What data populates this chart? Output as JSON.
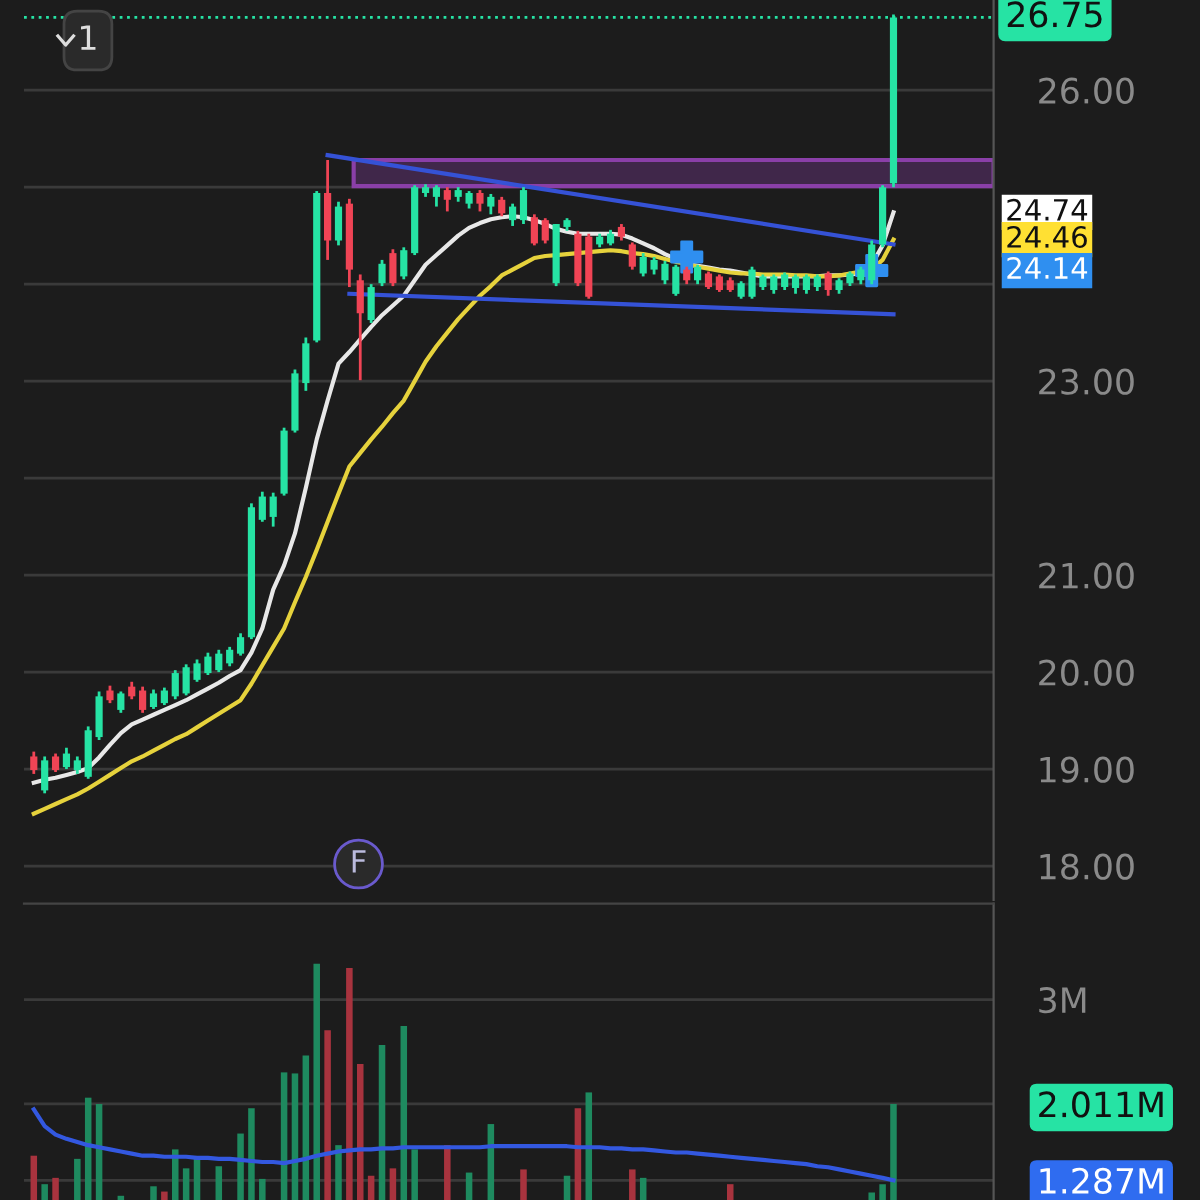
{
  "chart_data": [
    {
      "type": "candlestick",
      "categories": [
        null,
        null,
        null,
        null,
        null,
        null,
        null,
        null,
        null,
        null,
        null,
        null,
        null,
        null,
        null,
        null,
        null,
        null,
        null,
        null,
        null,
        null,
        null,
        null,
        null,
        null,
        null,
        null,
        null,
        null,
        null,
        null,
        null,
        null,
        null,
        null,
        null,
        null,
        null,
        null,
        null,
        null,
        null,
        null,
        null,
        null,
        null,
        null,
        null,
        null,
        null,
        null,
        null,
        null,
        null,
        null,
        null,
        null,
        null,
        null,
        null,
        null,
        null,
        null,
        null,
        null,
        null,
        null,
        null,
        null,
        null,
        null,
        null,
        null,
        null,
        null,
        null,
        null,
        null,
        null
      ],
      "ohlc": [
        [
          19.13,
          19.18,
          18.95,
          18.99
        ],
        [
          18.78,
          19.13,
          18.75,
          19.09
        ],
        [
          19.13,
          19.16,
          18.97,
          18.99
        ],
        [
          19.02,
          19.22,
          19.0,
          19.16
        ],
        [
          18.99,
          19.13,
          18.95,
          19.09
        ],
        [
          18.92,
          19.44,
          18.9,
          19.4
        ],
        [
          19.33,
          19.8,
          19.3,
          19.75
        ],
        [
          19.81,
          19.86,
          19.68,
          19.71
        ],
        [
          19.61,
          19.8,
          19.58,
          19.78
        ],
        [
          19.85,
          19.9,
          19.72,
          19.75
        ],
        [
          19.81,
          19.85,
          19.58,
          19.61
        ],
        [
          19.64,
          19.82,
          19.62,
          19.78
        ],
        [
          19.68,
          19.84,
          19.66,
          19.81
        ],
        [
          19.75,
          20.02,
          19.72,
          19.99
        ],
        [
          19.78,
          20.08,
          19.76,
          20.05
        ],
        [
          19.92,
          20.13,
          19.9,
          20.09
        ],
        [
          19.99,
          20.2,
          19.97,
          20.16
        ],
        [
          20.02,
          20.23,
          20.0,
          20.19
        ],
        [
          20.09,
          20.26,
          20.06,
          20.23
        ],
        [
          20.19,
          20.4,
          20.17,
          20.36
        ],
        [
          20.36,
          21.74,
          20.34,
          21.7
        ],
        [
          21.57,
          21.86,
          21.55,
          21.81
        ],
        [
          21.6,
          21.85,
          21.5,
          21.81
        ],
        [
          21.84,
          22.52,
          21.82,
          22.49
        ],
        [
          22.49,
          23.12,
          22.47,
          23.08
        ],
        [
          22.98,
          23.45,
          22.9,
          23.39
        ],
        [
          23.42,
          24.96,
          23.4,
          24.94
        ],
        [
          24.94,
          25.28,
          24.25,
          24.45
        ],
        [
          24.45,
          24.85,
          24.4,
          24.8
        ],
        [
          24.83,
          24.88,
          23.97,
          24.15
        ],
        [
          24.04,
          24.1,
          23.01,
          23.7
        ],
        [
          23.63,
          24.0,
          23.6,
          23.97
        ],
        [
          24.01,
          24.25,
          23.98,
          24.21
        ],
        [
          24.32,
          24.36,
          23.98,
          24.01
        ],
        [
          24.08,
          24.38,
          24.05,
          24.35
        ],
        [
          24.32,
          25.02,
          24.3,
          25.0
        ],
        [
          24.94,
          25.03,
          24.9,
          25.0
        ],
        [
          24.9,
          25.02,
          24.8,
          25.0
        ],
        [
          24.97,
          25.0,
          24.75,
          24.87
        ],
        [
          24.9,
          25.0,
          24.85,
          24.97
        ],
        [
          24.83,
          24.96,
          24.78,
          24.94
        ],
        [
          24.94,
          24.97,
          24.75,
          24.83
        ],
        [
          24.8,
          24.93,
          24.72,
          24.9
        ],
        [
          24.87,
          24.9,
          24.7,
          24.73
        ],
        [
          24.66,
          24.83,
          24.6,
          24.8
        ],
        [
          24.66,
          25.0,
          24.62,
          24.97
        ],
        [
          24.69,
          24.72,
          24.4,
          24.42
        ],
        [
          24.66,
          24.68,
          24.42,
          24.45
        ],
        [
          24.01,
          24.62,
          23.98,
          24.62
        ],
        [
          24.59,
          24.68,
          24.55,
          24.66
        ],
        [
          24.52,
          24.55,
          23.98,
          24.01
        ],
        [
          24.49,
          24.52,
          23.85,
          23.87
        ],
        [
          24.41,
          24.52,
          24.38,
          24.49
        ],
        [
          24.42,
          24.56,
          24.4,
          24.52
        ],
        [
          24.59,
          24.62,
          24.45,
          24.49
        ],
        [
          24.41,
          24.43,
          24.15,
          24.18
        ],
        [
          24.11,
          24.32,
          24.08,
          24.28
        ],
        [
          24.15,
          24.28,
          24.1,
          24.25
        ],
        [
          24.04,
          24.24,
          24.0,
          24.21
        ],
        [
          23.9,
          24.2,
          23.88,
          24.18
        ],
        [
          24.15,
          24.18,
          24.0,
          24.04
        ],
        [
          24.04,
          24.2,
          24.0,
          24.18
        ],
        [
          24.11,
          24.13,
          23.95,
          23.97
        ],
        [
          24.08,
          24.1,
          23.92,
          23.94
        ],
        [
          24.04,
          24.07,
          23.92,
          23.94
        ],
        [
          23.87,
          24.03,
          23.85,
          24.01
        ],
        [
          23.87,
          24.18,
          23.85,
          24.15
        ],
        [
          23.97,
          24.1,
          23.94,
          24.08
        ],
        [
          23.94,
          24.1,
          23.9,
          24.08
        ],
        [
          23.97,
          24.12,
          23.94,
          24.1
        ],
        [
          23.96,
          24.1,
          23.9,
          24.08
        ],
        [
          23.94,
          24.1,
          23.9,
          24.08
        ],
        [
          23.97,
          24.1,
          23.93,
          24.08
        ],
        [
          24.11,
          24.13,
          23.88,
          23.94
        ],
        [
          23.94,
          24.06,
          23.9,
          24.04
        ],
        [
          24.01,
          24.13,
          23.98,
          24.11
        ],
        [
          24.04,
          24.18,
          24.0,
          24.15
        ],
        [
          24.04,
          24.45,
          24.0,
          24.41
        ],
        [
          24.41,
          25.02,
          24.38,
          25.0
        ],
        [
          25.04,
          26.78,
          25.0,
          26.75
        ]
      ],
      "colors": [
        "#f04455",
        "#26e3a4",
        "#f04455",
        "#26e3a4",
        "#26e3a4",
        "#26e3a4",
        "#26e3a4",
        "#f04455",
        "#26e3a4",
        "#f04455",
        "#f04455",
        "#26e3a4",
        "#26e3a4",
        "#26e3a4",
        "#26e3a4",
        "#26e3a4",
        "#26e3a4",
        "#26e3a4",
        "#26e3a4",
        "#26e3a4",
        "#26e3a4",
        "#26e3a4",
        "#26e3a4",
        "#26e3a4",
        "#26e3a4",
        "#26e3a4",
        "#26e3a4",
        "#f04455",
        "#26e3a4",
        "#f04455",
        "#f04455",
        "#26e3a4",
        "#26e3a4",
        "#f04455",
        "#26e3a4",
        "#26e3a4",
        "#26e3a4",
        "#26e3a4",
        "#f04455",
        "#26e3a4",
        "#26e3a4",
        "#f04455",
        "#26e3a4",
        "#f04455",
        "#26e3a4",
        "#26e3a4",
        "#f04455",
        "#f04455",
        "#26e3a4",
        "#26e3a4",
        "#f04455",
        "#f04455",
        "#26e3a4",
        "#26e3a4",
        "#f04455",
        "#f04455",
        "#26e3a4",
        "#26e3a4",
        "#26e3a4",
        "#26e3a4",
        "#f04455",
        "#26e3a4",
        "#f04455",
        "#f04455",
        "#f04455",
        "#26e3a4",
        "#26e3a4",
        "#26e3a4",
        "#26e3a4",
        "#26e3a4",
        "#26e3a4",
        "#26e3a4",
        "#26e3a4",
        "#f04455",
        "#26e3a4",
        "#26e3a4",
        "#26e3a4",
        "#26e3a4",
        "#26e3a4",
        "#26e3a4"
      ],
      "series": [
        {
          "type": "line",
          "color": "#e8e8e8",
          "values": [
            18.86,
            18.89,
            18.91,
            18.94,
            18.97,
            19.01,
            19.12,
            19.25,
            19.37,
            19.46,
            19.51,
            19.56,
            19.61,
            19.66,
            19.71,
            19.77,
            19.83,
            19.89,
            19.96,
            20.02,
            20.2,
            20.45,
            20.85,
            21.1,
            21.43,
            21.9,
            22.4,
            22.8,
            23.18,
            23.3,
            23.43,
            23.56,
            23.68,
            23.78,
            23.88,
            24.04,
            24.2,
            24.3,
            24.4,
            24.5,
            24.58,
            24.63,
            24.67,
            24.69,
            24.7,
            24.69,
            24.66,
            24.62,
            24.57,
            24.54,
            24.52,
            24.52,
            24.52,
            24.52,
            24.51,
            24.47,
            24.42,
            24.37,
            24.31,
            24.26,
            24.21,
            24.19,
            24.17,
            24.15,
            24.14,
            24.12,
            24.1,
            24.08,
            24.08,
            24.08,
            24.08,
            24.08,
            24.08,
            24.09,
            24.09,
            24.1,
            24.11,
            24.2,
            24.4,
            24.74
          ]
        },
        {
          "type": "line",
          "color": "#e6d23c",
          "values": [
            18.54,
            18.59,
            18.64,
            18.69,
            18.74,
            18.8,
            18.87,
            18.94,
            19.01,
            19.08,
            19.13,
            19.19,
            19.25,
            19.31,
            19.36,
            19.43,
            19.5,
            19.57,
            19.64,
            19.71,
            19.88,
            20.07,
            20.26,
            20.45,
            20.72,
            20.98,
            21.26,
            21.55,
            21.84,
            22.12,
            22.26,
            22.4,
            22.53,
            22.67,
            22.8,
            23.0,
            23.2,
            23.36,
            23.5,
            23.64,
            23.76,
            23.88,
            23.98,
            24.09,
            24.15,
            24.21,
            24.27,
            24.29,
            24.3,
            24.31,
            24.32,
            24.33,
            24.34,
            24.35,
            24.34,
            24.32,
            24.31,
            24.29,
            24.26,
            24.23,
            24.21,
            24.18,
            24.16,
            24.14,
            24.12,
            24.11,
            24.11,
            24.1,
            24.1,
            24.1,
            24.09,
            24.09,
            24.08,
            24.08,
            24.09,
            24.11,
            24.13,
            24.15,
            24.25,
            24.46
          ]
        },
        {
          "type": "scatter",
          "color": "#2f8ff0",
          "marker": "cross",
          "values": [
            null,
            null,
            null,
            null,
            null,
            null,
            null,
            null,
            null,
            null,
            null,
            null,
            null,
            null,
            null,
            null,
            null,
            null,
            null,
            null,
            null,
            null,
            null,
            null,
            null,
            null,
            null,
            null,
            null,
            null,
            null,
            null,
            null,
            null,
            null,
            null,
            null,
            null,
            null,
            null,
            null,
            null,
            null,
            null,
            null,
            null,
            null,
            null,
            null,
            null,
            null,
            null,
            null,
            null,
            null,
            null,
            null,
            null,
            null,
            null,
            24.28,
            null,
            null,
            null,
            null,
            null,
            null,
            null,
            null,
            null,
            null,
            null,
            null,
            null,
            null,
            null,
            null,
            24.14,
            null,
            null
          ]
        },
        {
          "type": "line",
          "color": "#3552d6",
          "values": [
            null,
            null,
            null,
            null,
            null,
            null,
            null,
            null,
            null,
            null,
            null,
            null,
            null,
            null,
            null,
            null,
            null,
            null,
            null,
            null,
            null,
            null,
            null,
            null,
            null,
            null,
            null,
            25.33,
            null,
            null,
            null,
            null,
            null,
            null,
            null,
            null,
            null,
            null,
            null,
            null,
            null,
            null,
            null,
            null,
            null,
            null,
            null,
            null,
            null,
            null,
            null,
            null,
            null,
            null,
            null,
            null,
            null,
            null,
            null,
            null,
            null,
            null,
            null,
            null,
            null,
            null,
            null,
            null,
            null,
            null,
            null,
            null,
            null,
            null,
            null,
            null,
            null,
            null,
            null,
            24.41
          ]
        },
        {
          "type": "line",
          "color": "#3552d6",
          "values": [
            null,
            null,
            null,
            null,
            null,
            null,
            null,
            null,
            null,
            null,
            null,
            null,
            null,
            null,
            null,
            null,
            null,
            null,
            null,
            null,
            null,
            null,
            null,
            null,
            null,
            null,
            null,
            null,
            null,
            23.9,
            null,
            null,
            null,
            null,
            null,
            null,
            null,
            null,
            null,
            null,
            null,
            null,
            null,
            null,
            null,
            null,
            null,
            null,
            null,
            null,
            null,
            null,
            null,
            null,
            null,
            null,
            null,
            null,
            null,
            null,
            null,
            null,
            null,
            null,
            null,
            null,
            null,
            null,
            null,
            null,
            null,
            null,
            null,
            null,
            null,
            null,
            null,
            null,
            null,
            23.69
          ]
        }
      ],
      "ylim": [
        17.65,
        26.93
      ],
      "yticks": [
        {
          "value": 18,
          "label": "18.00"
        },
        {
          "value": 19,
          "label": "19.00"
        },
        {
          "value": 20,
          "label": "20.00"
        },
        {
          "value": 21,
          "label": "21.00"
        },
        {
          "value": 22,
          "label": null
        },
        {
          "value": 23,
          "label": "23.00"
        },
        {
          "value": 24,
          "label": null
        },
        {
          "value": 25,
          "label": null
        },
        {
          "value": 26,
          "label": "26.00"
        }
      ],
      "tick_labels": "y",
      "grid": "y",
      "ref_lines": [
        {
          "axis": "y",
          "value": 26.75,
          "label": "26.75",
          "color": "#26e3a4",
          "line_style": "dotted"
        }
      ],
      "bands": [
        {
          "axis": "y",
          "from": 25.01,
          "to": 25.28,
          "color": "#8a3fa8"
        }
      ],
      "annotations": [
        "1",
        "F",
        "24.74",
        "24.46",
        "24.14"
      ]
    },
    {
      "type": "bar",
      "categories": [
        null,
        null,
        null,
        null,
        null,
        null,
        null,
        null,
        null,
        null,
        null,
        null,
        null,
        null,
        null,
        null,
        null,
        null,
        null,
        null,
        null,
        null,
        null,
        null,
        null,
        null,
        null,
        null,
        null,
        null,
        null,
        null,
        null,
        null,
        null,
        null,
        null,
        null,
        null,
        null,
        null,
        null,
        null,
        null,
        null,
        null,
        null,
        null,
        null,
        null,
        null,
        null,
        null,
        null,
        null,
        null,
        null,
        null,
        null,
        null,
        null,
        null,
        null,
        null,
        null,
        null,
        null,
        null,
        null,
        null,
        null,
        null,
        null,
        null,
        null,
        null,
        null,
        null,
        null,
        null
      ],
      "series": [
        {
          "type": "bar",
          "values": [
            1.52,
            1.25,
            1.31,
            null,
            1.49,
            2.07,
            2.01,
            null,
            1.14,
            null,
            null,
            1.23,
            1.18,
            1.58,
            1.4,
            1.49,
            null,
            1.42,
            null,
            1.73,
            1.97,
            1.3,
            null,
            2.31,
            2.3,
            2.47,
            3.34,
            2.71,
            1.62,
            3.3,
            2.39,
            1.33,
            2.57,
            1.4,
            2.75,
            1.58,
            null,
            null,
            1.62,
            null,
            1.36,
            null,
            1.82,
            null,
            null,
            1.39,
            null,
            null,
            null,
            1.33,
            1.97,
            2.12,
            null,
            null,
            null,
            1.39,
            1.31,
            null,
            null,
            null,
            null,
            null,
            null,
            null,
            1.25,
            null,
            null,
            null,
            null,
            null,
            null,
            null,
            null,
            null,
            null,
            null,
            null,
            1.17,
            1.25,
            2.011
          ],
          "colors": [
            "#a8333e",
            "#1e8a5f",
            "#a8333e",
            null,
            "#1e8a5f",
            "#1e8a5f",
            "#1e8a5f",
            null,
            "#1e8a5f",
            null,
            null,
            "#1e8a5f",
            "#a8333e",
            "#1e8a5f",
            "#1e8a5f",
            "#1e8a5f",
            null,
            "#1e8a5f",
            null,
            "#1e8a5f",
            "#1e8a5f",
            "#1e8a5f",
            null,
            "#1e8a5f",
            "#1e8a5f",
            "#1e8a5f",
            "#1e8a5f",
            "#a8333e",
            "#1e8a5f",
            "#a8333e",
            "#a8333e",
            "#a8333e",
            "#1e8a5f",
            "#a8333e",
            "#1e8a5f",
            "#1e8a5f",
            null,
            null,
            "#a8333e",
            null,
            "#1e8a5f",
            null,
            "#1e8a5f",
            null,
            null,
            "#a8333e",
            null,
            null,
            null,
            "#1e8a5f",
            "#a8333e",
            "#1e8a5f",
            null,
            null,
            null,
            "#a8333e",
            "#1e8a5f",
            null,
            null,
            null,
            null,
            null,
            null,
            null,
            "#a8333e",
            null,
            null,
            null,
            null,
            null,
            null,
            null,
            null,
            null,
            null,
            null,
            null,
            "#1e8a5f",
            "#1e8a5f",
            "#1e8a5f"
          ]
        },
        {
          "type": "line",
          "color": "#3358e0",
          "values": [
            1.96,
            1.8,
            1.72,
            1.68,
            1.65,
            1.62,
            1.6,
            1.58,
            1.56,
            1.54,
            1.52,
            1.52,
            1.51,
            1.51,
            1.51,
            1.5,
            1.5,
            1.49,
            1.49,
            1.48,
            1.47,
            1.46,
            1.46,
            1.45,
            1.47,
            1.49,
            1.52,
            1.54,
            1.56,
            1.57,
            1.58,
            1.58,
            1.59,
            1.59,
            1.6,
            1.6,
            1.6,
            1.6,
            1.6,
            1.6,
            1.6,
            1.6,
            1.61,
            1.61,
            1.61,
            1.61,
            1.61,
            1.61,
            1.61,
            1.61,
            1.6,
            1.6,
            1.6,
            1.59,
            1.59,
            1.58,
            1.58,
            1.57,
            1.56,
            1.55,
            1.55,
            1.54,
            1.53,
            1.52,
            1.51,
            1.5,
            1.49,
            1.48,
            1.47,
            1.46,
            1.45,
            1.44,
            1.42,
            1.41,
            1.39,
            1.37,
            1.35,
            1.33,
            1.31,
            1.287
          ]
        }
      ],
      "ylim": [
        1.1,
        3.91
      ],
      "yticks": [
        {
          "value": 1.287,
          "label": "1.287M"
        },
        {
          "value": 2.011,
          "label": "2.011M"
        },
        {
          "value": 3,
          "label": "3M"
        }
      ],
      "tick_labels": "y",
      "grid": "y"
    }
  ]
}
